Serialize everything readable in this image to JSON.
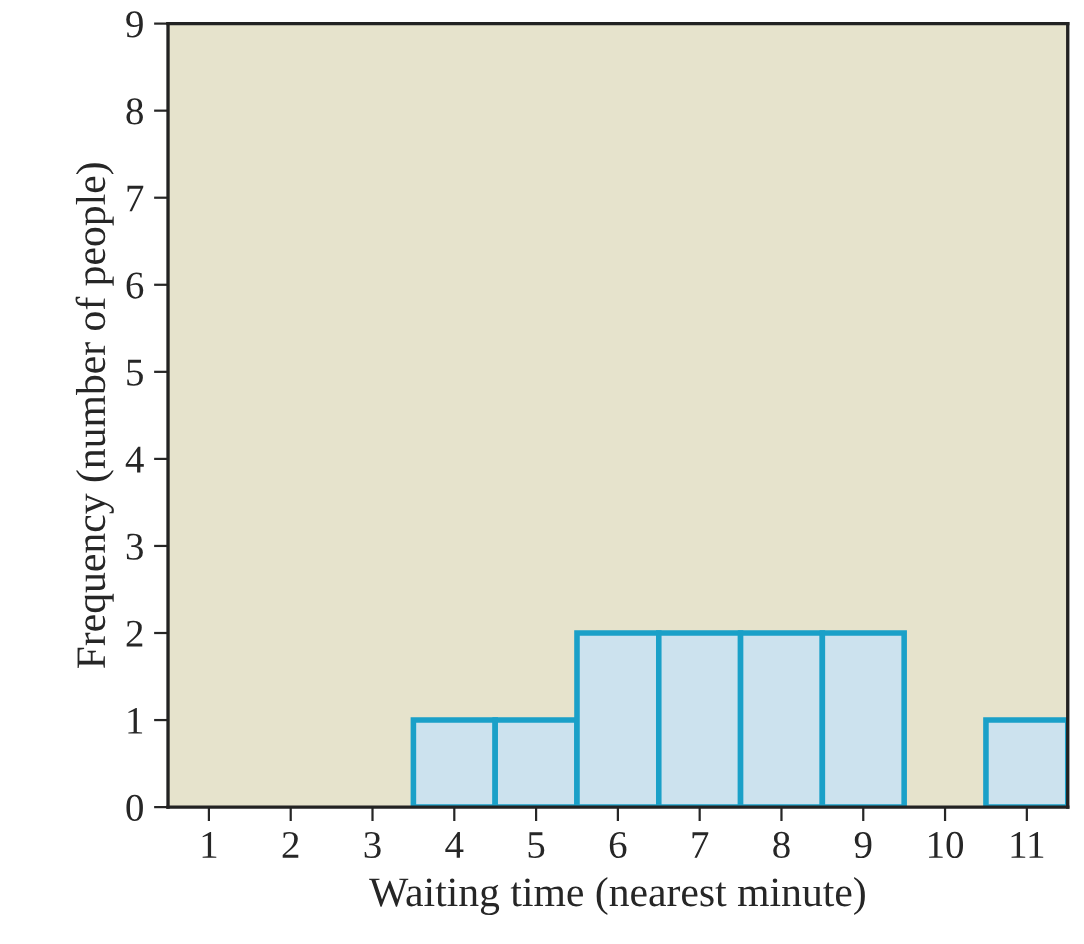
{
  "chart_data": {
    "type": "histogram",
    "xlabel": "Waiting time (nearest minute)",
    "ylabel": "Frequency (number of people)",
    "bins": [
      0.5,
      1.5,
      2.5,
      3.5,
      4.5,
      5.5,
      6.5,
      7.5,
      8.5,
      9.5,
      10.5,
      11.5
    ],
    "values": [
      0,
      0,
      0,
      1,
      1,
      2,
      2,
      2,
      2,
      0,
      1
    ],
    "color": "#cce2ee",
    "xlim": [
      0.5,
      11.5
    ],
    "xticks": [
      1,
      2,
      3,
      4,
      5,
      6,
      7,
      8,
      9,
      10,
      11
    ],
    "ylim": [
      0,
      9
    ],
    "yticks": [
      0,
      1,
      2,
      3,
      4,
      5,
      6,
      7,
      8,
      9
    ],
    "grid": false
  }
}
